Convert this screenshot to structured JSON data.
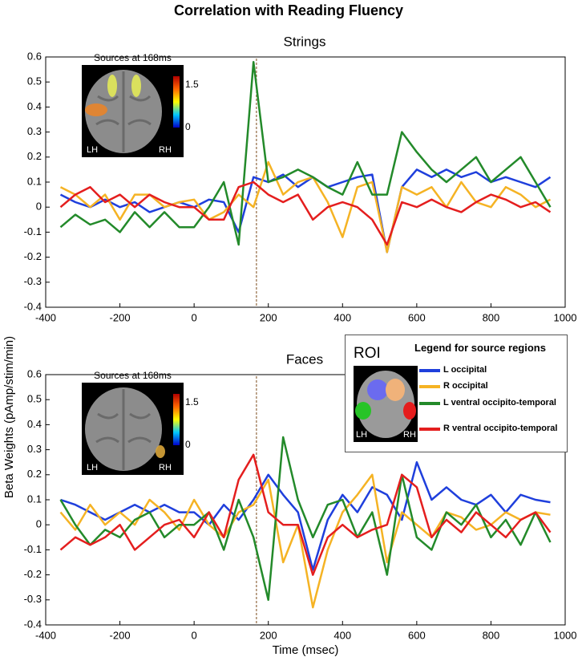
{
  "title": "Correlation with Reading Fluency",
  "chart_data": [
    {
      "type": "line",
      "title": "Strings",
      "x": [
        -360,
        -320,
        -280,
        -240,
        -200,
        -160,
        -120,
        -80,
        -40,
        0,
        40,
        80,
        120,
        160,
        200,
        240,
        280,
        320,
        360,
        400,
        440,
        480,
        520,
        560,
        600,
        640,
        680,
        720,
        760,
        800,
        840,
        880,
        920,
        960
      ],
      "series": [
        {
          "color": "#1f3fdc",
          "values": [
            0.05,
            0.02,
            0.0,
            0.03,
            0.0,
            0.02,
            -0.02,
            0.0,
            0.02,
            0.0,
            0.03,
            0.02,
            -0.1,
            0.12,
            0.1,
            0.13,
            0.08,
            0.12,
            0.08,
            0.1,
            0.12,
            0.13,
            -0.18,
            0.08,
            0.15,
            0.12,
            0.15,
            0.12,
            0.14,
            0.1,
            0.12,
            0.1,
            0.08,
            0.12
          ]
        },
        {
          "color": "#f5b324",
          "values": [
            0.08,
            0.05,
            0.0,
            0.05,
            -0.05,
            0.05,
            0.05,
            0.0,
            0.02,
            0.03,
            -0.05,
            -0.02,
            0.05,
            0.0,
            0.18,
            0.05,
            0.1,
            0.12,
            0.02,
            -0.12,
            0.08,
            0.1,
            -0.18,
            0.08,
            0.05,
            0.08,
            0.0,
            0.1,
            0.02,
            0.0,
            0.08,
            0.05,
            0.0,
            0.03
          ]
        },
        {
          "color": "#238a2a",
          "values": [
            -0.08,
            -0.03,
            -0.07,
            -0.05,
            -0.1,
            -0.02,
            -0.08,
            -0.02,
            -0.08,
            -0.08,
            0.0,
            0.1,
            -0.15,
            0.58,
            0.1,
            0.12,
            0.15,
            0.12,
            0.08,
            0.05,
            0.18,
            0.05,
            0.05,
            0.3,
            0.22,
            0.15,
            0.1,
            0.15,
            0.2,
            0.1,
            0.15,
            0.2,
            0.1,
            0.0
          ]
        },
        {
          "color": "#e41e1e",
          "values": [
            0.0,
            0.05,
            0.08,
            0.02,
            0.05,
            0.0,
            0.05,
            0.02,
            0.0,
            0.0,
            -0.05,
            -0.05,
            0.08,
            0.1,
            0.05,
            0.02,
            0.05,
            -0.05,
            0.0,
            0.02,
            0.0,
            -0.05,
            -0.15,
            0.02,
            0.0,
            0.03,
            0.0,
            -0.02,
            0.02,
            0.05,
            0.03,
            0.0,
            0.02,
            -0.02
          ]
        }
      ],
      "vline": 168,
      "xlim": [
        -400,
        1000
      ],
      "xticks": [
        -400,
        -200,
        0,
        200,
        400,
        600,
        800,
        1000
      ],
      "ylim": [
        -0.4,
        0.6
      ],
      "yticks": [
        0.6,
        0.5,
        0.4,
        0.3,
        0.2,
        0.1,
        0,
        -0.1,
        -0.2,
        -0.3,
        -0.4
      ],
      "inset": {
        "title": "Sources at 168ms",
        "left": "LH",
        "right": "RH",
        "cbar_lim": [
          0,
          1.8
        ],
        "cbar_ticks": [
          0,
          1.5
        ]
      }
    },
    {
      "type": "line",
      "title": "Faces",
      "x": [
        -360,
        -320,
        -280,
        -240,
        -200,
        -160,
        -120,
        -80,
        -40,
        0,
        40,
        80,
        120,
        160,
        200,
        240,
        280,
        320,
        360,
        400,
        440,
        480,
        520,
        560,
        600,
        640,
        680,
        720,
        760,
        800,
        840,
        880,
        920,
        960
      ],
      "series": [
        {
          "name": "L occipital",
          "color": "#1f3fdc",
          "values": [
            0.1,
            0.08,
            0.05,
            0.02,
            0.05,
            0.08,
            0.05,
            0.08,
            0.05,
            0.05,
            0.0,
            0.08,
            0.02,
            0.1,
            0.2,
            0.12,
            0.05,
            -0.18,
            0.02,
            0.12,
            0.05,
            0.15,
            0.12,
            0.02,
            0.25,
            0.1,
            0.15,
            0.1,
            0.08,
            0.12,
            0.05,
            0.12,
            0.1,
            0.09
          ]
        },
        {
          "name": "R occipital",
          "color": "#f5b324",
          "values": [
            0.05,
            -0.02,
            0.08,
            0.0,
            0.05,
            0.0,
            0.1,
            0.05,
            -0.02,
            0.1,
            0.0,
            -0.05,
            0.05,
            0.08,
            0.18,
            -0.15,
            0.0,
            -0.33,
            -0.1,
            0.05,
            0.12,
            0.2,
            -0.15,
            0.05,
            0.0,
            -0.05,
            0.05,
            0.03,
            -0.02,
            0.0,
            0.05,
            0.02,
            0.05,
            0.04
          ]
        },
        {
          "name": "L ventral occipito-temporal",
          "color": "#238a2a",
          "values": [
            0.1,
            0.0,
            -0.08,
            -0.02,
            -0.05,
            0.02,
            0.05,
            -0.05,
            0.0,
            0.0,
            0.05,
            -0.1,
            0.1,
            -0.05,
            -0.3,
            0.35,
            0.1,
            -0.05,
            0.08,
            0.1,
            -0.05,
            0.05,
            -0.2,
            0.2,
            -0.05,
            -0.1,
            0.05,
            0.0,
            0.08,
            -0.05,
            0.02,
            -0.08,
            0.05,
            -0.07
          ]
        },
        {
          "name": "R ventral occipito-temporal",
          "color": "#e41e1e",
          "values": [
            -0.1,
            -0.05,
            -0.08,
            -0.05,
            0.0,
            -0.1,
            -0.05,
            0.0,
            0.02,
            -0.05,
            0.05,
            -0.05,
            0.18,
            0.28,
            0.05,
            0.0,
            0.0,
            -0.2,
            -0.05,
            0.0,
            -0.05,
            -0.02,
            0.0,
            0.2,
            0.15,
            -0.05,
            0.02,
            -0.03,
            0.05,
            0.0,
            -0.05,
            0.02,
            0.05,
            -0.03
          ]
        }
      ],
      "vline": 168,
      "xlim": [
        -400,
        1000
      ],
      "xticks": [
        -400,
        -200,
        0,
        200,
        400,
        600,
        800,
        1000
      ],
      "ylim": [
        -0.4,
        0.6
      ],
      "yticks": [
        0.6,
        0.5,
        0.4,
        0.3,
        0.2,
        0.1,
        0,
        -0.1,
        -0.2,
        -0.3,
        -0.4
      ],
      "xlabel": "Time (msec)",
      "ylabel": "Beta Weights (pAmp/stim/min)",
      "legend_title": "Legend for source regions",
      "roi_label": "ROI",
      "inset": {
        "title": "Sources at 168ms",
        "left": "LH",
        "right": "RH",
        "cbar_lim": [
          0,
          1.8
        ],
        "cbar_ticks": [
          0,
          1.5
        ]
      }
    }
  ]
}
